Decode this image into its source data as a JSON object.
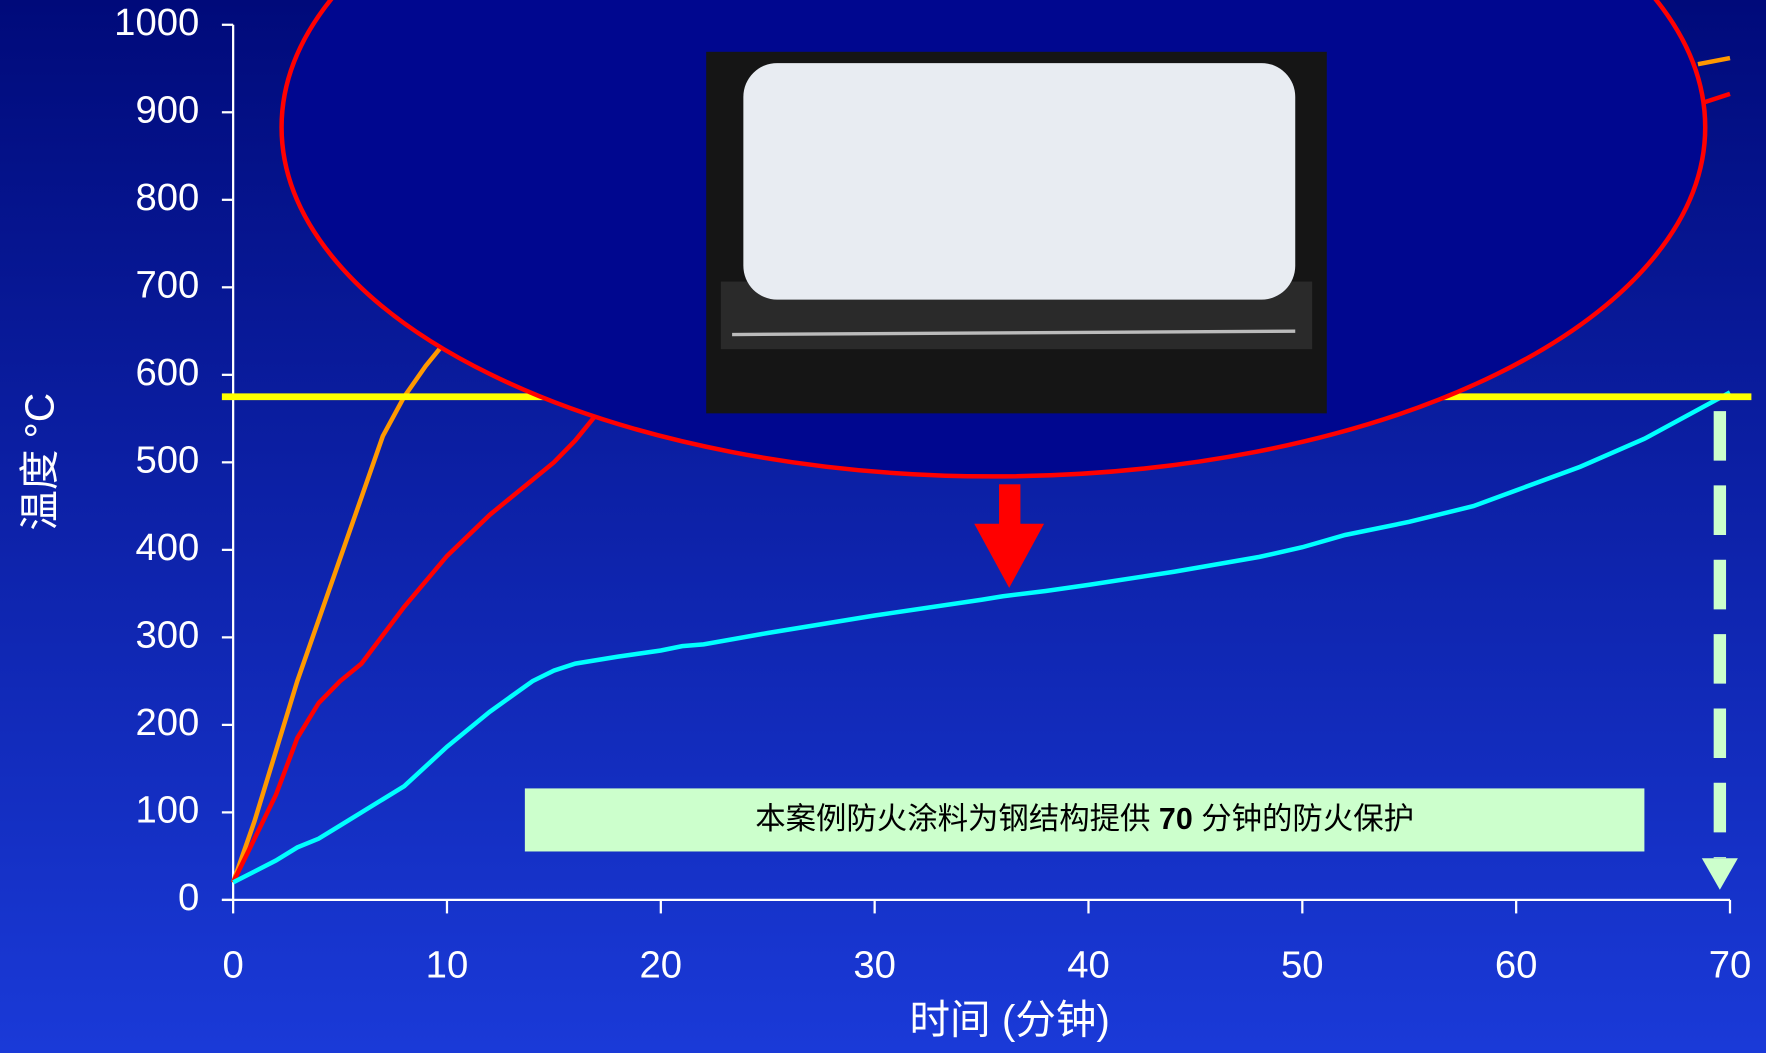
{
  "chart_data": {
    "type": "line",
    "xlabel": "时间 (分钟)",
    "ylabel": "温度 °C",
    "xlim": [
      0,
      70
    ],
    "xticks": [
      0,
      10,
      20,
      30,
      40,
      50,
      60,
      70
    ],
    "ylim": [
      0,
      1000
    ],
    "yticks": [
      0,
      100,
      200,
      300,
      400,
      500,
      600,
      700,
      800,
      900,
      1000
    ],
    "reference_line": {
      "value": 575,
      "color": "#ffff00"
    },
    "series": [
      {
        "color": "#ff9900",
        "x": [
          0,
          1,
          2,
          3,
          4,
          5,
          6,
          7,
          8,
          9,
          10,
          null,
          68.5,
          70
        ],
        "values": [
          20,
          90,
          170,
          250,
          320,
          390,
          460,
          530,
          575,
          610,
          640,
          null,
          955,
          962
        ]
      },
      {
        "color": "#ff0000",
        "x": [
          0,
          2,
          3,
          4,
          5,
          6,
          8,
          10,
          12,
          14,
          15,
          16,
          17,
          null,
          68.5,
          70
        ],
        "values": [
          20,
          120,
          185,
          225,
          250,
          270,
          335,
          393,
          440,
          480,
          500,
          525,
          555,
          null,
          909,
          921
        ]
      },
      {
        "color": "#00ffff",
        "x": [
          0,
          2,
          3,
          4,
          5,
          7,
          8,
          10,
          12,
          14,
          15,
          16,
          18,
          20,
          21,
          22,
          25,
          30,
          35,
          36,
          38,
          40,
          44,
          48,
          50,
          52,
          55,
          58,
          60,
          63,
          66,
          70
        ],
        "values": [
          20,
          45,
          60,
          70,
          85,
          115,
          130,
          175,
          215,
          250,
          262,
          270,
          278,
          285,
          290,
          292,
          305,
          325,
          343,
          347,
          353,
          360,
          375,
          392,
          403,
          417,
          432,
          450,
          468,
          495,
          527,
          580
        ]
      }
    ],
    "annotation": {
      "before": "本案例防火涂料为钢结构提供",
      "bold": "70",
      "after": "分钟的防火保护"
    }
  }
}
